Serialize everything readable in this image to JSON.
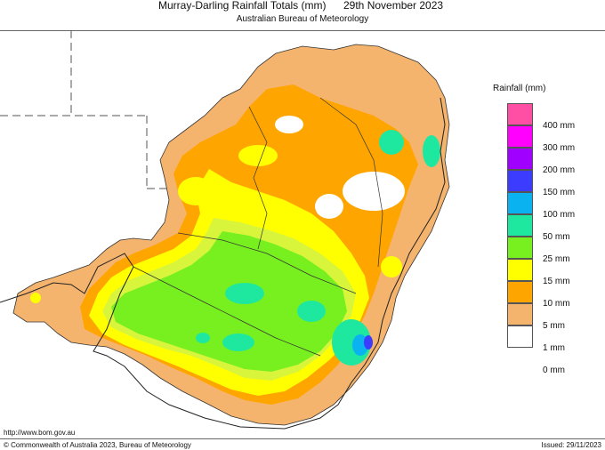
{
  "header": {
    "title": "Murray-Darling Rainfall Totals (mm)",
    "date": "29th November 2023",
    "subtitle": "Australian Bureau of Meteorology"
  },
  "legend": {
    "title": "Rainfall (mm)",
    "items": [
      {
        "label": "400 mm",
        "color": "#ff4fa4"
      },
      {
        "label": "300 mm",
        "color": "#ff00ff"
      },
      {
        "label": "200 mm",
        "color": "#a000ff"
      },
      {
        "label": "150 mm",
        "color": "#3c3cff"
      },
      {
        "label": "100 mm",
        "color": "#0ab2f0"
      },
      {
        "label": "50 mm",
        "color": "#1ee8a0"
      },
      {
        "label": "25 mm",
        "color": "#78f020"
      },
      {
        "label": "15 mm",
        "color": "#ffff00"
      },
      {
        "label": "10 mm",
        "color": "#ffa500"
      },
      {
        "label": "5 mm",
        "color": "#f5b46e"
      },
      {
        "label": "1 mm",
        "color": "#ffffff"
      },
      {
        "label": "0 mm",
        "color": ""
      }
    ]
  },
  "footer": {
    "url": "http://www.bom.gov.au",
    "copyright": "© Commonwealth of Australia 2023, Bureau of Meteorology",
    "issued": "Issued: 29/11/2023"
  }
}
